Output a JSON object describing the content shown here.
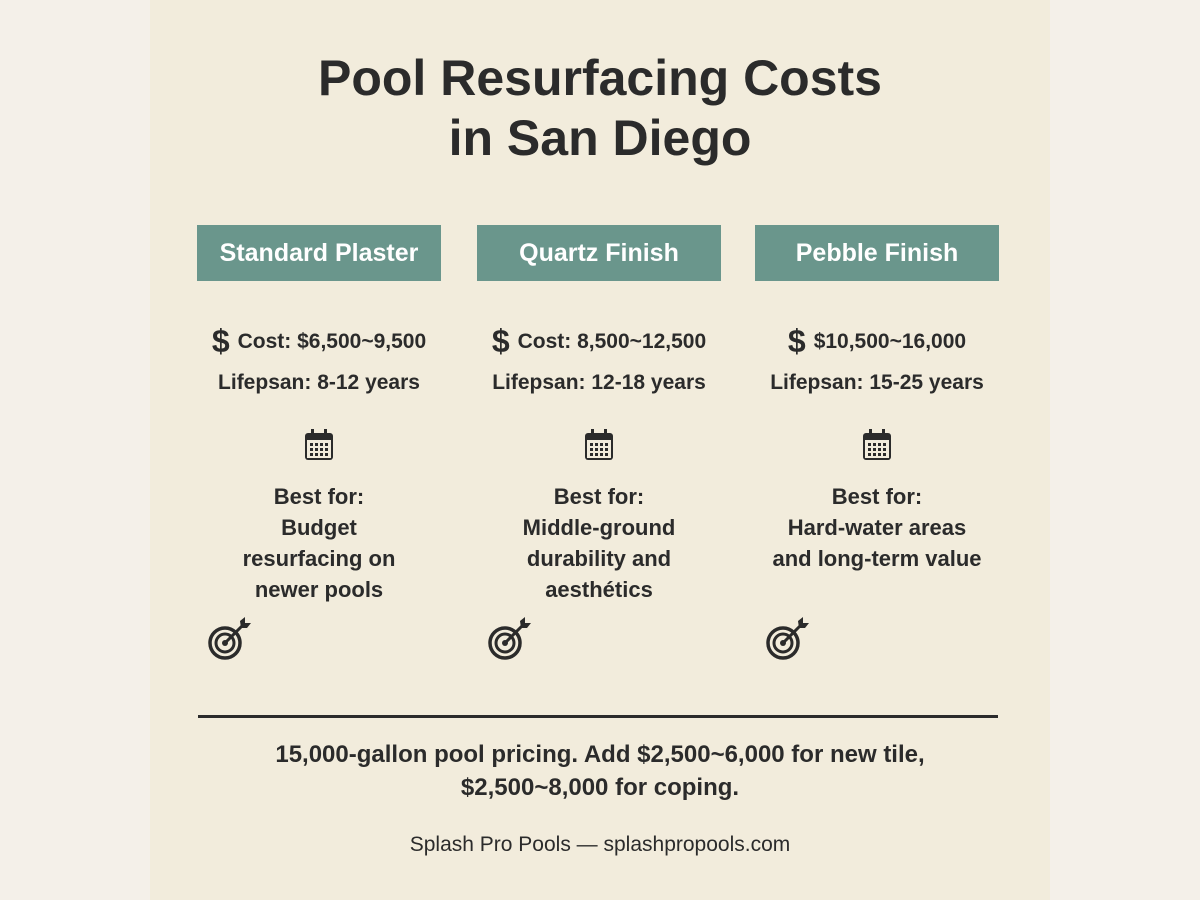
{
  "title": {
    "line1": "Pool Resurfacing Costs",
    "line2": "in San Diego"
  },
  "colors": {
    "header_bg": "#6a968c",
    "background": "#f2ecdc",
    "text": "#2b2b2b"
  },
  "columns": [
    {
      "heading": "Standard Plaster",
      "cost_icon": "dollar-icon",
      "cost": "Cost: $6,500~9,500",
      "lifespan": "Lifepsan: 8-12 years",
      "best_for_label": "Best for:",
      "best_for": "Budget\nresurfacing on\nnewer pools"
    },
    {
      "heading": "Quartz Finish",
      "cost_icon": "dollar-icon",
      "cost": "Cost: 8,500~12,500",
      "lifespan": "Lifepsan: 12-18 years",
      "best_for_label": "Best for:",
      "best_for": "Middle-ground\ndurability and\naesthétics"
    },
    {
      "heading": "Pebble Finish",
      "cost_icon": "dollar-icon",
      "cost": "$10,500~16,000",
      "lifespan": "Lifepsan: 15-25 years",
      "best_for_label": "Best for:",
      "best_for": "Hard-water areas\nand long-term value"
    }
  ],
  "dollar_sign": "$",
  "footnote": {
    "line1": "15,000-gallon pool pricing. Add $2,500~6,000 for new tile,",
    "line2": "$2,500~8,000 for coping."
  },
  "credit": "Splash Pro Pools — splashpropools.com"
}
